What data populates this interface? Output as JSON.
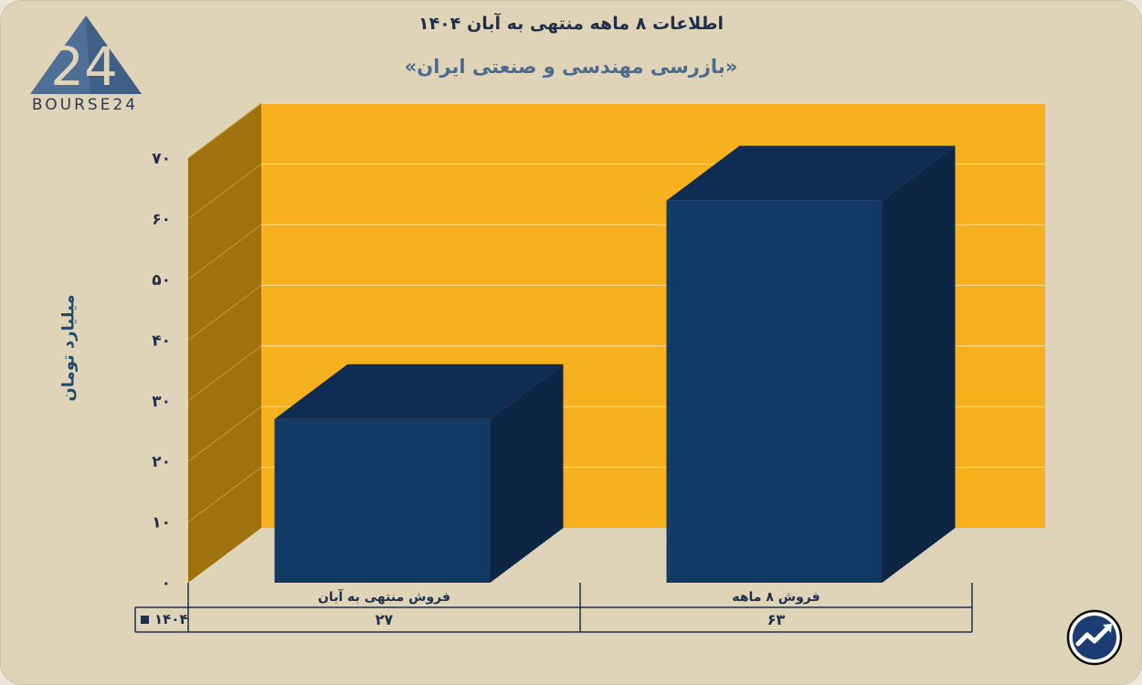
{
  "header": {
    "title": "اطلاعات ۸ ماهه منتهی به آبان ۱۴۰۴",
    "subtitle": "«بازرسی مهندسی و صنعتی ایران»"
  },
  "logo": {
    "text": "BOURSE24",
    "mark": "24",
    "icon": "triangle-logo-icon"
  },
  "corner_icon": {
    "icon": "trend-up-arrow-icon"
  },
  "colors": {
    "background": "#e0d4b8",
    "plot_back": "#f7b11e",
    "plot_side": "#a0720e",
    "bar_front": "#133a64",
    "bar_top": "#0f2d52",
    "bar_side": "#0c2644",
    "text_dark": "#1f2f4a"
  },
  "chart_data": {
    "type": "bar",
    "title": "اطلاعات ۸ ماهه منتهی به آبان ۱۴۰۴",
    "subtitle": "«بازرسی مهندسی و صنعتی ایران»",
    "ylabel": "میلیارد تومان",
    "xlabel": "",
    "categories": [
      "فروش منتهی به  آبان",
      "فروش ۸  ماهه"
    ],
    "series": [
      {
        "name": "۱۴۰۴",
        "values": [
          27,
          63
        ],
        "value_labels": [
          "۲۷",
          "۶۳"
        ]
      }
    ],
    "ylim": [
      0,
      70
    ],
    "yticks": [
      0,
      10,
      20,
      30,
      40,
      50,
      60,
      70
    ],
    "ytick_labels": [
      "۰",
      "۱۰",
      "۲۰",
      "۳۰",
      "۴۰",
      "۵۰",
      "۶۰",
      "۷۰"
    ],
    "grid": true,
    "style": "3d",
    "data_table": true
  }
}
